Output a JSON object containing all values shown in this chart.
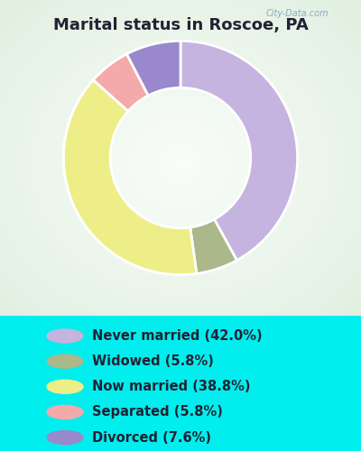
{
  "title": "Marital status in Roscoe, PA",
  "slices": [
    {
      "label": "Never married (42.0%)",
      "value": 42.0,
      "color": "#c4b4df"
    },
    {
      "label": "Widowed (5.8%)",
      "value": 5.8,
      "color": "#aab88a"
    },
    {
      "label": "Now married (38.8%)",
      "value": 38.8,
      "color": "#eeee88"
    },
    {
      "label": "Separated (5.8%)",
      "value": 5.8,
      "color": "#f4aaaa"
    },
    {
      "label": "Divorced (7.6%)",
      "value": 7.6,
      "color": "#9988cc"
    }
  ],
  "bg_cyan": "#00eeee",
  "bg_chart_center": "#f0faf4",
  "bg_chart_edge": "#d0ead8",
  "title_color": "#222233",
  "title_fontsize": 13,
  "legend_fontsize": 10.5,
  "donut_width": 0.4,
  "watermark": "City-Data.com"
}
